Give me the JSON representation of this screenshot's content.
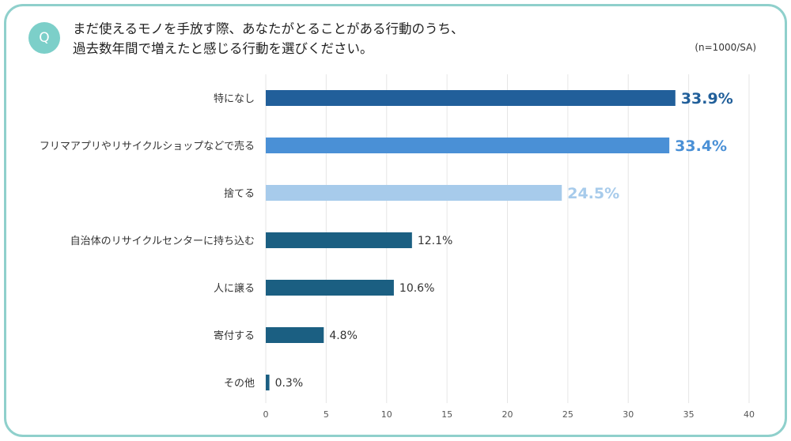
{
  "question_mark": "Q",
  "question_lines": [
    "まだ使えるモノを手放す際、あなたがとることがある行動のうち、",
    "過去数年間で増えたと感じる行動を選びください。"
  ],
  "sample_note": "(n=1000/SA)",
  "chart_data": {
    "type": "bar",
    "orientation": "horizontal",
    "categories": [
      "特になし",
      "フリマアプリやリサイクルショップなどで売る",
      "捨てる",
      "自治体のリサイクルセンターに持ち込む",
      "人に譲る",
      "寄付する",
      "その他"
    ],
    "values": [
      33.9,
      33.4,
      24.5,
      12.1,
      10.6,
      4.8,
      0.3
    ],
    "value_labels": [
      "33.9%",
      "33.4%",
      "24.5%",
      "12.1%",
      "10.6%",
      "4.8%",
      "0.3%"
    ],
    "bar_colors": [
      "#215f9a",
      "#4a90d6",
      "#a7cbeb",
      "#1b5f82",
      "#1b5f82",
      "#1b5f82",
      "#1b5f82"
    ],
    "label_colors": [
      "#215f9a",
      "#4a90d6",
      "#a7cbeb",
      "#333333",
      "#333333",
      "#333333",
      "#333333"
    ],
    "label_emphasis": [
      true,
      true,
      true,
      false,
      false,
      false,
      false
    ],
    "xlim": [
      0,
      40
    ],
    "xticks": [
      0,
      5,
      10,
      15,
      20,
      25,
      30,
      35,
      40
    ],
    "grid": true
  }
}
